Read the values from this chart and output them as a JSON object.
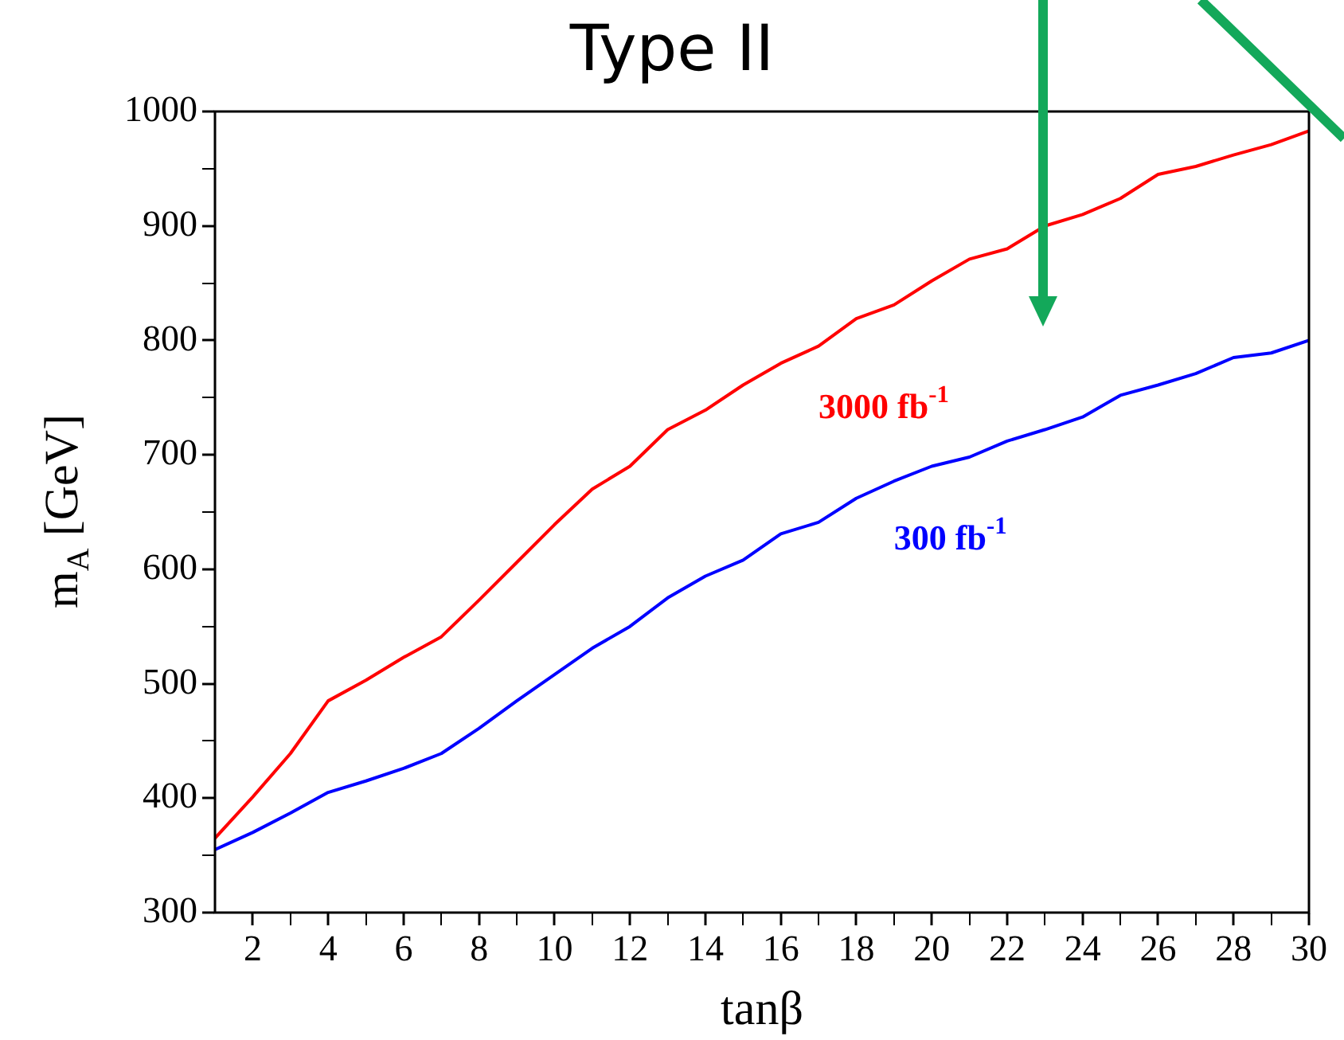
{
  "chart_data": {
    "type": "line",
    "title": "Type II",
    "xlabel": "tanβ",
    "ylabel": "m$_{A}$ [GeV]",
    "x": [
      1,
      2,
      3,
      4,
      5,
      6,
      7,
      8,
      9,
      10,
      11,
      12,
      13,
      14,
      15,
      16,
      17,
      18,
      19,
      20,
      21,
      22,
      23,
      24,
      25,
      26,
      27,
      28,
      29,
      30
    ],
    "series": [
      {
        "name": "3000 fb$^{-1}$",
        "color": "#ff0000",
        "values": [
          365,
          401,
          439,
          485,
          503,
          523,
          541,
          573,
          606,
          639,
          670,
          690,
          722,
          739,
          761,
          780,
          795,
          819,
          831,
          852,
          871,
          880,
          900,
          910,
          924,
          945,
          952,
          962,
          971,
          983
        ]
      },
      {
        "name": "300 fb$^{-1}$",
        "color": "#0000ff",
        "values": [
          355,
          370,
          387,
          405,
          415,
          426,
          439,
          461,
          485,
          508,
          531,
          550,
          575,
          594,
          608,
          631,
          641,
          662,
          677,
          690,
          698,
          712,
          722,
          733,
          752,
          761,
          771,
          785,
          789,
          800
        ]
      }
    ],
    "xlim": [
      1,
      30
    ],
    "xticks": [
      2,
      {
        "value": 3,
        "label": null
      },
      4,
      {
        "value": 5,
        "label": null
      },
      6,
      {
        "value": 7,
        "label": null
      },
      8,
      {
        "value": 9,
        "label": null
      },
      10,
      {
        "value": 11,
        "label": null
      },
      12,
      {
        "value": 13,
        "label": null
      },
      14,
      {
        "value": 15,
        "label": null
      },
      16,
      {
        "value": 17,
        "label": null
      },
      18,
      {
        "value": 19,
        "label": null
      },
      20,
      {
        "value": 21,
        "label": null
      },
      22,
      {
        "value": 23,
        "label": null
      },
      24,
      {
        "value": 25,
        "label": null
      },
      26,
      {
        "value": 27,
        "label": null
      },
      28,
      {
        "value": 29,
        "label": null
      },
      30
    ],
    "ylim": [
      300,
      1000
    ],
    "yticks": [
      300,
      {
        "value": 350,
        "label": null
      },
      400,
      {
        "value": 450,
        "label": null
      },
      500,
      {
        "value": 550,
        "label": null
      },
      600,
      {
        "value": 650,
        "label": null
      },
      700,
      {
        "value": 750,
        "label": null
      },
      800,
      {
        "value": 850,
        "label": null
      },
      900,
      {
        "value": 950,
        "label": null
      },
      1000
    ],
    "grid": false,
    "legend": false,
    "marker": "none",
    "line_style": "solid"
  }
}
